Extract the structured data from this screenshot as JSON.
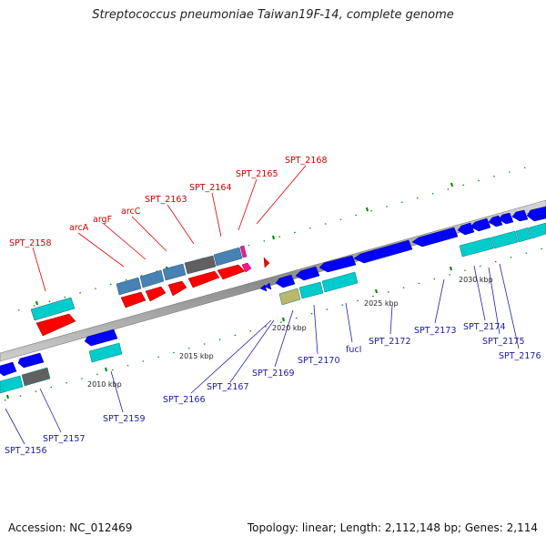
{
  "title": "Streptococcus pneumoniae Taiwan19F-14, complete genome",
  "footer": {
    "accession": "Accession: NC_012469",
    "topology": "Topology: linear; Length: 2,112,148 bp; Genes: 2,114"
  },
  "scale_labels": [
    "2010 kbp",
    "2015 kbp",
    "2020 kbp",
    "2025 kbp",
    "2030 kbp"
  ],
  "gene_labels": {
    "top": [
      "SPT_2158",
      "arcA",
      "argF",
      "arcC",
      "SPT_2163",
      "SPT_2164",
      "SPT_2165",
      "SPT_2168"
    ],
    "bottom": [
      "SPT_2156",
      "SPT_2157",
      "SPT_2159",
      "SPT_2166",
      "SPT_2167",
      "SPT_2169",
      "SPT_2170",
      "fucI",
      "SPT_2172",
      "SPT_2173",
      "SPT_2174",
      "SPT_2175",
      "SPT_2176"
    ]
  },
  "colors": {
    "forward_cds": "#ff0000",
    "forward_cds_alt": "#ff1493",
    "forward_protein": "#4682b4",
    "forward_protein_gray": "#606060",
    "reverse_cds": "#0000ff",
    "reverse_protein": "#00cccc",
    "reverse_protein_olive": "#bdb76b",
    "backbone": "#999999",
    "tick": "#008000",
    "label_forward": "#cc0000",
    "label_reverse": "#1a1aa6"
  }
}
